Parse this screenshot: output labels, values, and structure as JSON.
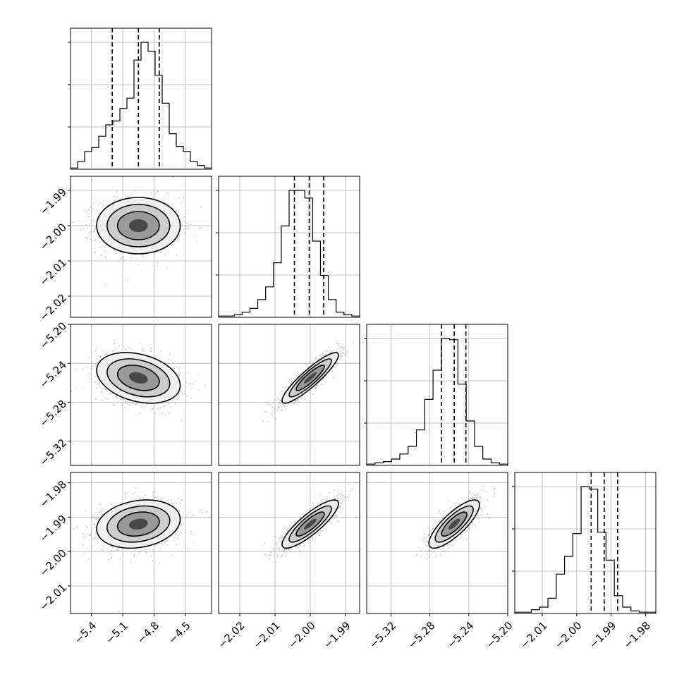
{
  "chart_data": {
    "type": "corner",
    "title": "",
    "n_params": 4,
    "colors": {
      "hist": "#000000",
      "grid": "#b0b0b0",
      "points": "#9a9a9a",
      "contour": "#000000"
    },
    "params": [
      {
        "name": "",
        "range": [
          -5.6,
          -4.25
        ],
        "ticks": [
          -5.4,
          -5.1,
          -4.8,
          -4.5
        ],
        "tick_labels": [
          "−5.4",
          "−5.1",
          "−4.8",
          "−4.5"
        ],
        "mean": -4.95,
        "sigma": 0.2,
        "quantiles": [
          -5.2,
          -4.95,
          -4.75
        ],
        "hist": [
          1,
          6,
          14,
          17,
          26,
          35,
          38,
          48,
          56,
          86,
          100,
          93,
          74,
          52,
          28,
          18,
          14,
          6,
          3,
          1
        ]
      },
      {
        "name": "",
        "range": [
          -2.026,
          -1.986
        ],
        "ticks": [
          -2.02,
          -2.01,
          -2.0,
          -1.99
        ],
        "tick_labels": [
          "−2.02",
          "−2.01",
          "−2.00",
          "−1.99"
        ],
        "mean": -2.0,
        "sigma": 0.004,
        "quantiles": [
          -2.0045,
          -2.0003,
          -1.9962
        ],
        "hist": [
          1,
          1,
          2,
          4,
          7,
          14,
          24,
          43,
          72,
          100,
          100,
          94,
          60,
          33,
          14,
          4,
          2,
          1
        ]
      },
      {
        "name": "",
        "range": [
          -5.345,
          -5.2
        ],
        "ticks": [
          -5.32,
          -5.28,
          -5.24,
          -5.2
        ],
        "tick_labels": [
          "−5.32",
          "−5.28",
          "−5.24",
          "−5.20"
        ],
        "mean": -5.255,
        "sigma": 0.013,
        "quantiles": [
          -5.268,
          -5.255,
          -5.243
        ],
        "hist": [
          1,
          2,
          3,
          5,
          9,
          15,
          28,
          52,
          75,
          100,
          99,
          64,
          35,
          15,
          5,
          2,
          1
        ]
      },
      {
        "name": "",
        "range": [
          -2.018,
          -1.977
        ],
        "ticks": [
          -2.01,
          -2.0,
          -1.99,
          -1.98
        ],
        "tick_labels": [
          "−2.01",
          "−2.00",
          "−1.99",
          "−1.98"
        ],
        "mean": -1.992,
        "sigma": 0.0035,
        "quantiles": [
          -1.9958,
          -1.992,
          -1.9881
        ],
        "hist": [
          1,
          1,
          3,
          5,
          12,
          31,
          45,
          63,
          100,
          98,
          64,
          42,
          14,
          5,
          2,
          1,
          1
        ]
      }
    ],
    "correlations": [
      [
        1,
        0.0,
        -0.3,
        0.2
      ],
      [
        0.0,
        1,
        0.9,
        0.85
      ],
      [
        -0.3,
        0.9,
        1,
        0.8
      ],
      [
        0.2,
        0.85,
        0.8,
        1
      ]
    ]
  }
}
